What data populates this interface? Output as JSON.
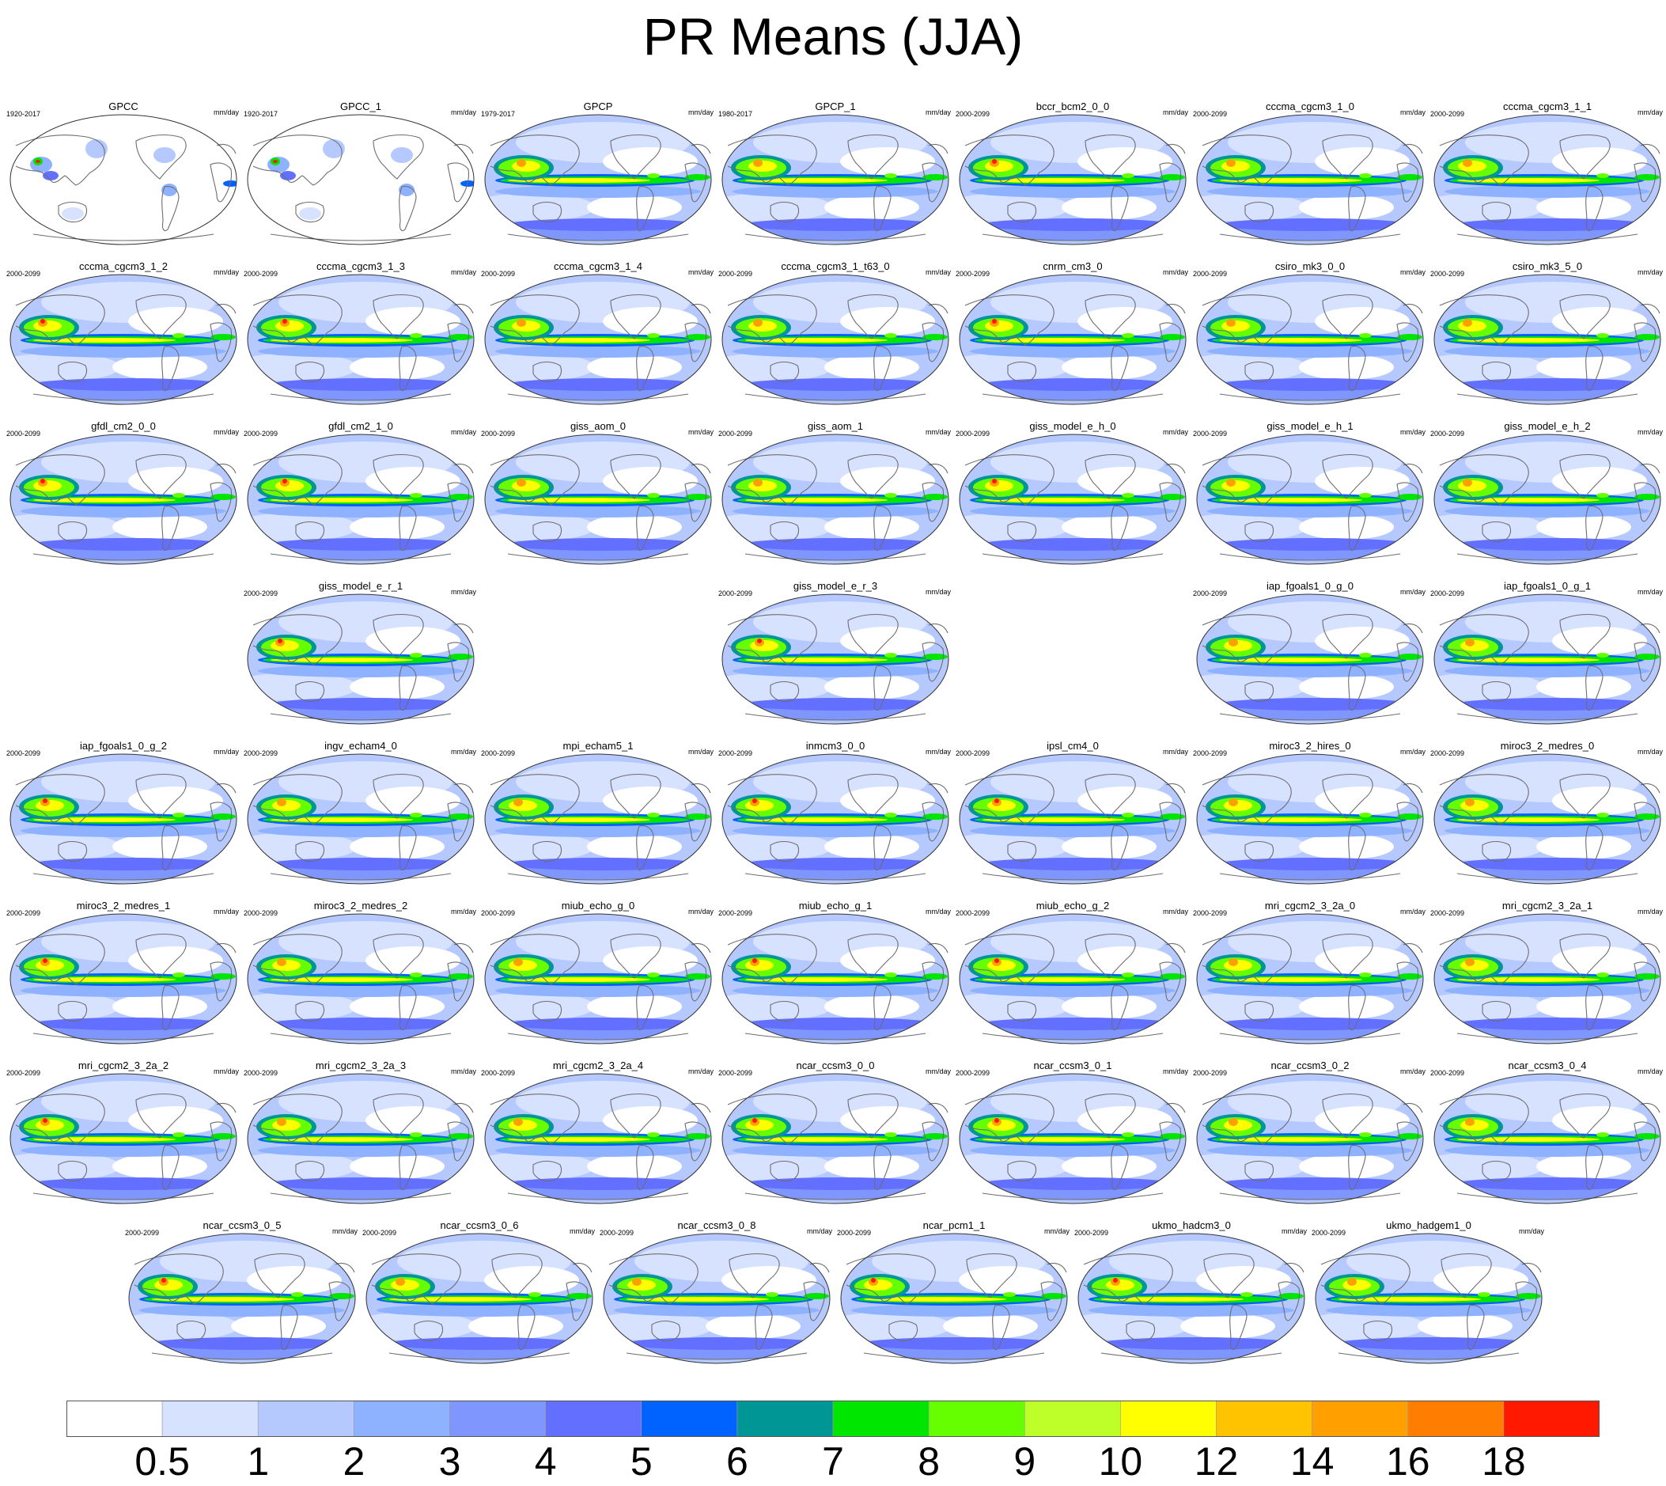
{
  "chart_data": {
    "type": "heatmap",
    "title": "PR Means (JJA)",
    "projection": "Robinson, Pacific-centred global maps",
    "variable": "precipitation",
    "season": "JJA",
    "units": "mm/day",
    "colorbar": {
      "levels": [
        "0.5",
        "1",
        "2",
        "3",
        "4",
        "5",
        "6",
        "7",
        "8",
        "9",
        "10",
        "12",
        "14",
        "16",
        "18"
      ],
      "colors": [
        "#ffffff",
        "#d6e2ff",
        "#b5c9ff",
        "#8eb2ff",
        "#7f96ff",
        "#6370ff",
        "#0063ff",
        "#009696",
        "#00e600",
        "#66ff00",
        "#beff2a",
        "#ffff00",
        "#ffc300",
        "#ffa000",
        "#ff7d00",
        "#ff1900"
      ]
    },
    "panels": [
      {
        "name": "GPCC",
        "period": "1920-2017",
        "units": "mm/day"
      },
      {
        "name": "GPCC_1",
        "period": "1920-2017",
        "units": "mm/day"
      },
      {
        "name": "GPCP",
        "period": "1979-2017",
        "units": "mm/day"
      },
      {
        "name": "GPCP_1",
        "period": "1980-2017",
        "units": "mm/day"
      },
      {
        "name": "bccr_bcm2_0_0",
        "period": "2000-2099",
        "units": "mm/day"
      },
      {
        "name": "cccma_cgcm3_1_0",
        "period": "2000-2099",
        "units": "mm/day"
      },
      {
        "name": "cccma_cgcm3_1_1",
        "period": "2000-2099",
        "units": "mm/day"
      },
      {
        "name": "cccma_cgcm3_1_2",
        "period": "2000-2099",
        "units": "mm/day"
      },
      {
        "name": "cccma_cgcm3_1_3",
        "period": "2000-2099",
        "units": "mm/day"
      },
      {
        "name": "cccma_cgcm3_1_4",
        "period": "2000-2099",
        "units": "mm/day"
      },
      {
        "name": "cccma_cgcm3_1_t63_0",
        "period": "2000-2099",
        "units": "mm/day"
      },
      {
        "name": "cnrm_cm3_0",
        "period": "2000-2099",
        "units": "mm/day"
      },
      {
        "name": "csiro_mk3_0_0",
        "period": "2000-2099",
        "units": "mm/day"
      },
      {
        "name": "csiro_mk3_5_0",
        "period": "2000-2099",
        "units": "mm/day"
      },
      {
        "name": "gfdl_cm2_0_0",
        "period": "2000-2099",
        "units": "mm/day"
      },
      {
        "name": "gfdl_cm2_1_0",
        "period": "2000-2099",
        "units": "mm/day"
      },
      {
        "name": "giss_aom_0",
        "period": "2000-2099",
        "units": "mm/day"
      },
      {
        "name": "giss_aom_1",
        "period": "2000-2099",
        "units": "mm/day"
      },
      {
        "name": "giss_model_e_h_0",
        "period": "2000-2099",
        "units": "mm/day"
      },
      {
        "name": "giss_model_e_h_1",
        "period": "2000-2099",
        "units": "mm/day"
      },
      {
        "name": "giss_model_e_h_2",
        "period": "2000-2099",
        "units": "mm/day"
      },
      {
        "name": "giss_model_e_r_1",
        "period": "2000-2099",
        "units": "mm/day"
      },
      {
        "name": "giss_model_e_r_3",
        "period": "2000-2099",
        "units": "mm/day"
      },
      {
        "name": "iap_fgoals1_0_g_0",
        "period": "2000-2099",
        "units": "mm/day"
      },
      {
        "name": "iap_fgoals1_0_g_1",
        "period": "2000-2099",
        "units": "mm/day"
      },
      {
        "name": "iap_fgoals1_0_g_2",
        "period": "2000-2099",
        "units": "mm/day"
      },
      {
        "name": "ingv_echam4_0",
        "period": "2000-2099",
        "units": "mm/day"
      },
      {
        "name": "mpi_echam5_1",
        "period": "2000-2099",
        "units": "mm/day"
      },
      {
        "name": "inmcm3_0_0",
        "period": "2000-2099",
        "units": "mm/day"
      },
      {
        "name": "ipsl_cm4_0",
        "period": "2000-2099",
        "units": "mm/day"
      },
      {
        "name": "miroc3_2_hires_0",
        "period": "2000-2099",
        "units": "mm/day"
      },
      {
        "name": "miroc3_2_medres_0",
        "period": "2000-2099",
        "units": "mm/day"
      },
      {
        "name": "miroc3_2_medres_1",
        "period": "2000-2099",
        "units": "mm/day"
      },
      {
        "name": "miroc3_2_medres_2",
        "period": "2000-2099",
        "units": "mm/day"
      },
      {
        "name": "miub_echo_g_0",
        "period": "2000-2099",
        "units": "mm/day"
      },
      {
        "name": "miub_echo_g_1",
        "period": "2000-2099",
        "units": "mm/day"
      },
      {
        "name": "miub_echo_g_2",
        "period": "2000-2099",
        "units": "mm/day"
      },
      {
        "name": "mri_cgcm2_3_2a_0",
        "period": "2000-2099",
        "units": "mm/day"
      },
      {
        "name": "mri_cgcm2_3_2a_1",
        "period": "2000-2099",
        "units": "mm/day"
      },
      {
        "name": "mri_cgcm2_3_2a_2",
        "period": "2000-2099",
        "units": "mm/day"
      },
      {
        "name": "mri_cgcm2_3_2a_3",
        "period": "2000-2099",
        "units": "mm/day"
      },
      {
        "name": "mri_cgcm2_3_2a_4",
        "period": "2000-2099",
        "units": "mm/day"
      },
      {
        "name": "ncar_ccsm3_0_0",
        "period": "2000-2099",
        "units": "mm/day"
      },
      {
        "name": "ncar_ccsm3_0_1",
        "period": "2000-2099",
        "units": "mm/day"
      },
      {
        "name": "ncar_ccsm3_0_2",
        "period": "2000-2099",
        "units": "mm/day"
      },
      {
        "name": "ncar_ccsm3_0_4",
        "period": "2000-2099",
        "units": "mm/day"
      },
      {
        "name": "ncar_ccsm3_0_5",
        "period": "2000-2099",
        "units": "mm/day"
      },
      {
        "name": "ncar_ccsm3_0_6",
        "period": "2000-2099",
        "units": "mm/day"
      },
      {
        "name": "ncar_ccsm3_0_8",
        "period": "2000-2099",
        "units": "mm/day"
      },
      {
        "name": "ncar_pcm1_1",
        "period": "2000-2099",
        "units": "mm/day"
      },
      {
        "name": "ukmo_hadcm3_0",
        "period": "2000-2099",
        "units": "mm/day"
      },
      {
        "name": "ukmo_hadgem1_0",
        "period": "2000-2099",
        "units": "mm/day"
      }
    ]
  }
}
